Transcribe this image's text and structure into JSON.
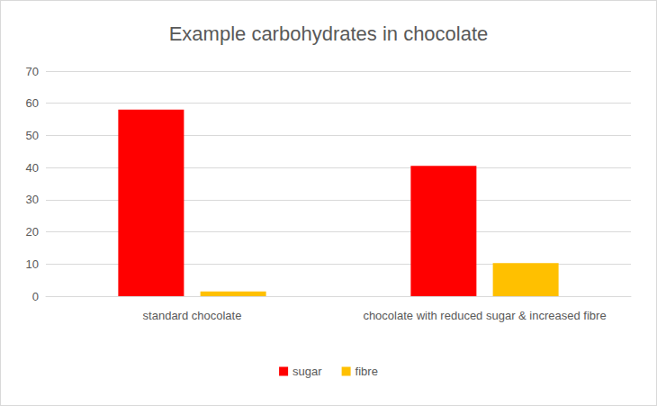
{
  "chart_data": {
    "type": "bar",
    "title": "Example carbohydrates in chocolate",
    "categories": [
      "standard chocolate",
      "chocolate with reduced sugar & increased fibre"
    ],
    "series": [
      {
        "name": "sugar",
        "color": "#ff0000",
        "values": [
          58,
          40.5
        ]
      },
      {
        "name": "fibre",
        "color": "#ffc000",
        "values": [
          1.5,
          10.3
        ]
      }
    ],
    "ylim": [
      0,
      70
    ],
    "yticks": [
      0,
      10,
      20,
      30,
      40,
      50,
      60,
      70
    ],
    "grid": true,
    "legend": "bottom"
  }
}
